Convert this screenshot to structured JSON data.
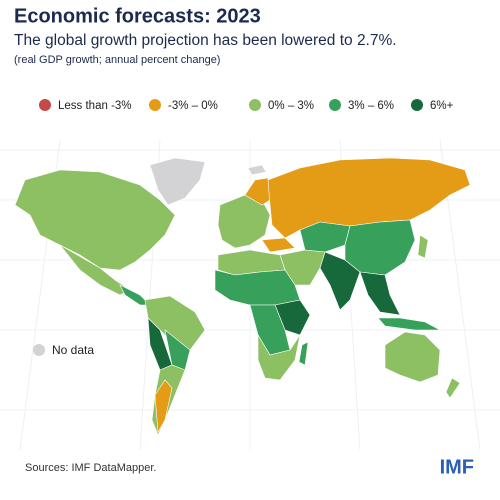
{
  "header": {
    "title": "Economic forecasts: 2023",
    "subtitle": "The global growth projection has been lowered to 2.7%.",
    "note": "(real GDP growth; annual percent change)"
  },
  "legend": [
    {
      "label": "Less than -3%",
      "color": "#c4494a"
    },
    {
      "label": "-3% – 0%",
      "color": "#e49b16"
    },
    {
      "label": "0% – 3%",
      "color": "#8cc063"
    },
    {
      "label": "3% – 6%",
      "color": "#37a05a"
    },
    {
      "label": "6%+",
      "color": "#17683a"
    }
  ],
  "no_data": {
    "label": "No data",
    "color": "#d3d3d6"
  },
  "footer": {
    "source": "Sources: IMF DataMapper.",
    "logo": "IMF"
  }
}
